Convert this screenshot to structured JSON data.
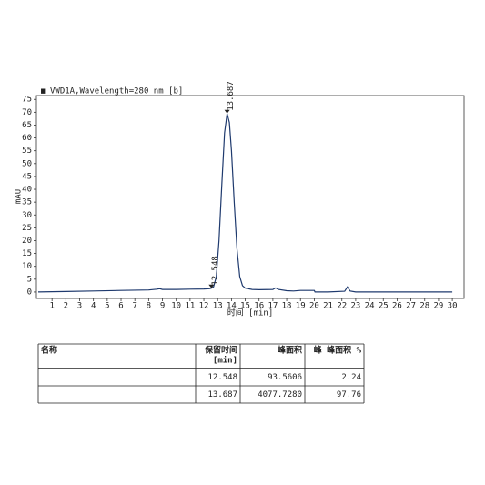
{
  "chart_data": {
    "type": "line",
    "title": "VWD1A,Wavelength=280 nm [b]",
    "legend_marker": "■",
    "x_label": "时间 [min]",
    "y_label": "mAU",
    "x": [
      0,
      2,
      4,
      6,
      8,
      8.6,
      8.8,
      9.0,
      10,
      11,
      12,
      12.4,
      12.548,
      12.7,
      12.9,
      13.1,
      13.3,
      13.5,
      13.687,
      13.85,
      14.0,
      14.2,
      14.4,
      14.6,
      14.8,
      15,
      15.5,
      16,
      17,
      17.2,
      17.4,
      18,
      18.5,
      19,
      20,
      20.05,
      21,
      22.2,
      22.4,
      22.6,
      23,
      30
    ],
    "series": [
      {
        "name": "VWD1A",
        "color": "#1f3a6e",
        "values": [
          0,
          0.2,
          0.4,
          0.6,
          0.8,
          1.1,
          1.3,
          1.0,
          1.0,
          1.1,
          1.2,
          1.3,
          1.5,
          2,
          6,
          20,
          42,
          62,
          69.5,
          66,
          55,
          35,
          17,
          6,
          2.5,
          1.5,
          1.0,
          0.9,
          1.0,
          1.6,
          1.0,
          0.5,
          0.4,
          0.6,
          0.6,
          0,
          0,
          0.3,
          2.0,
          0.4,
          0,
          0
        ]
      }
    ],
    "peaks": [
      {
        "x": 12.548,
        "y": 1.5
      },
      {
        "x": 13.687,
        "y": 69.5
      }
    ],
    "xlim": [
      0,
      31
    ],
    "ylim": [
      -2.5,
      76.5
    ],
    "xticks": [
      1,
      2,
      3,
      4,
      5,
      6,
      7,
      8,
      9,
      10,
      11,
      12,
      13,
      14,
      15,
      16,
      17,
      18,
      19,
      20,
      21,
      22,
      23,
      24,
      25,
      26,
      27,
      28,
      29,
      30
    ],
    "yticks": [
      0,
      5,
      10,
      15,
      20,
      25,
      30,
      35,
      40,
      45,
      50,
      55,
      60,
      65,
      70,
      75
    ]
  },
  "table": {
    "headers": [
      "名称",
      [
        "保留时间",
        "[min]"
      ],
      "峰面积",
      "峰 峰面积 %"
    ],
    "rows": [
      [
        "12.548",
        "93.5606",
        "2.24"
      ],
      [
        "13.687",
        "4077.7280",
        "97.76"
      ]
    ]
  }
}
